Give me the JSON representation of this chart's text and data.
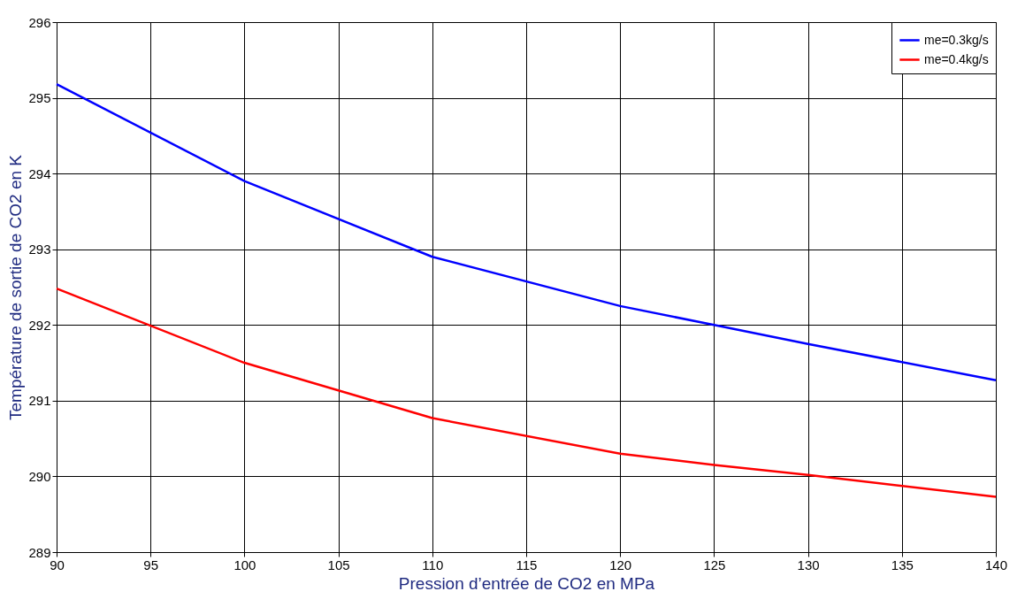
{
  "chart_data": {
    "type": "line",
    "xlabel": "Pression d’entrée de CO2 en MPa",
    "ylabel": "Température de sortie  de CO2 en K",
    "x": [
      90,
      100,
      110,
      120,
      125,
      130,
      140
    ],
    "series": [
      {
        "name": "me=0.3kg/s",
        "color": "#0000ff",
        "values": [
          295.18,
          293.9,
          292.9,
          292.25,
          292.0,
          291.75,
          291.27
        ]
      },
      {
        "name": "me=0.4kg/s",
        "color": "#ff0000",
        "values": [
          292.48,
          291.5,
          290.77,
          290.3,
          290.15,
          290.02,
          289.73
        ]
      }
    ],
    "xlim": [
      90,
      140
    ],
    "xticks": [
      90,
      95,
      100,
      105,
      110,
      115,
      120,
      125,
      130,
      135,
      140
    ],
    "ylim": [
      289,
      296
    ],
    "yticks": [
      289,
      290,
      291,
      292,
      293,
      294,
      295,
      296
    ],
    "grid": true,
    "legend": "top right",
    "marker": "none",
    "line_style": "solid"
  }
}
